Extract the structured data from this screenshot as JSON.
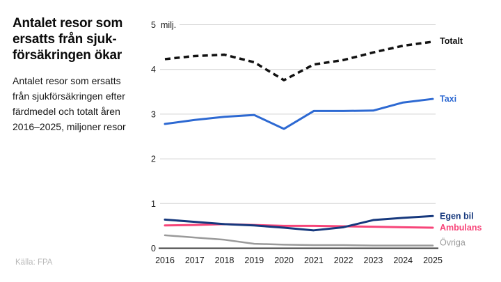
{
  "header": {
    "title_lines": [
      "Antalet resor som",
      "ersatts från sjuk-",
      "försäkringen ökar"
    ],
    "subtitle_lines": [
      "Antalet resor som ersatts",
      "från sjukförsäkringen efter",
      "färdmedel och totalt åren",
      "2016–2025, miljoner resor"
    ]
  },
  "source": "Källa: FPA",
  "colors": {
    "totalt": "#111111",
    "taxi": "#2d69d2",
    "egen_bil": "#16387d",
    "ambulans": "#f74579",
    "ovriga": "#9a9a9a",
    "grid": "#d2d2d2",
    "axis": "#3c3c3c",
    "tick_text": "#1a1a1a"
  },
  "chart_data": {
    "type": "line",
    "title": "Antalet resor som ersatts från sjukförsäkringen ökar",
    "subtitle": "Antalet resor som ersatts från sjukförsäkringen efter färdmedel och totalt åren 2016–2025, miljoner resor",
    "unit_label": "milj.",
    "xlabel": "",
    "ylabel": "miljoner resor",
    "x": [
      2016,
      2017,
      2018,
      2019,
      2020,
      2021,
      2022,
      2023,
      2024,
      2025
    ],
    "y_ticks": [
      0,
      1,
      2,
      3,
      4,
      5
    ],
    "ylim": [
      0,
      5
    ],
    "grid": true,
    "legend_position": "right-end-labels",
    "series": [
      {
        "id": "totalt",
        "name": "Totalt",
        "color": "#111111",
        "style": "dashed",
        "values": [
          4.23,
          4.3,
          4.33,
          4.16,
          3.76,
          4.11,
          4.21,
          4.38,
          4.53,
          4.62
        ]
      },
      {
        "id": "taxi",
        "name": "Taxi",
        "color": "#2d69d2",
        "style": "solid",
        "values": [
          2.78,
          2.87,
          2.94,
          2.98,
          2.67,
          3.07,
          3.07,
          3.08,
          3.26,
          3.34
        ]
      },
      {
        "id": "egen-bil",
        "name": "Egen bil",
        "color": "#16387d",
        "style": "solid",
        "values": [
          0.64,
          0.59,
          0.54,
          0.51,
          0.46,
          0.4,
          0.47,
          0.63,
          0.68,
          0.72
        ]
      },
      {
        "id": "ambulans",
        "name": "Ambulans",
        "color": "#f74579",
        "style": "solid",
        "values": [
          0.51,
          0.52,
          0.54,
          0.52,
          0.5,
          0.5,
          0.49,
          0.48,
          0.47,
          0.46
        ]
      },
      {
        "id": "ovriga",
        "name": "Övriga",
        "color": "#9a9a9a",
        "style": "solid",
        "values": [
          0.29,
          0.24,
          0.19,
          0.1,
          0.08,
          0.07,
          0.07,
          0.06,
          0.06,
          0.06
        ]
      }
    ]
  }
}
